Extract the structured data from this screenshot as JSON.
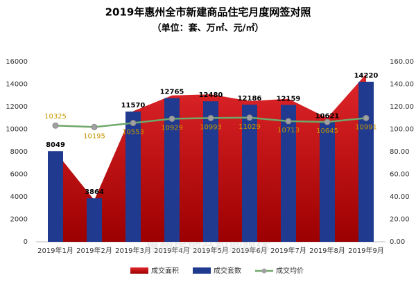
{
  "chart_data": {
    "type": "combo",
    "title": "2019年惠州全市新建商品住宅月度网签对照",
    "subtitle": "（单位：套、万㎡、元/㎡）",
    "watermark": [
      "惠民之家",
      "WWW.FZ0752.COM",
      "惠州房地产权威媒体"
    ],
    "categories": [
      "2019年1月",
      "2019年2月",
      "2019年3月",
      "2019年4月",
      "2019年5月",
      "2019年6月",
      "2019年7月",
      "2019年8月",
      "2019年9月"
    ],
    "ylim": [
      0,
      16000
    ],
    "yticks": [
      0,
      2000,
      4000,
      6000,
      8000,
      10000,
      12000,
      14000,
      16000
    ],
    "y2lim": [
      0,
      160
    ],
    "y2ticks": [
      {
        "value": 0,
        "label": "0.00"
      },
      {
        "value": 20,
        "label": "20.00"
      },
      {
        "value": 40,
        "label": "40.00"
      },
      {
        "value": 60,
        "label": "60.00"
      },
      {
        "value": 80,
        "label": "80.00"
      },
      {
        "value": 100,
        "label": "100.00"
      },
      {
        "value": 120,
        "label": "120.00"
      },
      {
        "value": 140,
        "label": "140.00"
      },
      {
        "value": 160,
        "label": "160.00"
      }
    ],
    "grid": false,
    "legend": "bottom",
    "series": [
      {
        "name": "成交面积",
        "type": "area",
        "axis": "y2",
        "color": "#c00000",
        "values": [
          80,
          37,
          116,
          130,
          131,
          125,
          127,
          110,
          149
        ]
      },
      {
        "name": "成交套数",
        "type": "bar",
        "color": "#1f3a8f",
        "values": [
          8049,
          3864,
          11570,
          12765,
          12480,
          12186,
          12159,
          10621,
          14220
        ]
      },
      {
        "name": "成交均价",
        "type": "line",
        "color": "#6fa86a",
        "values": [
          10325,
          10195,
          10553,
          10929,
          10993,
          11029,
          10713,
          10645,
          10991
        ]
      }
    ]
  }
}
